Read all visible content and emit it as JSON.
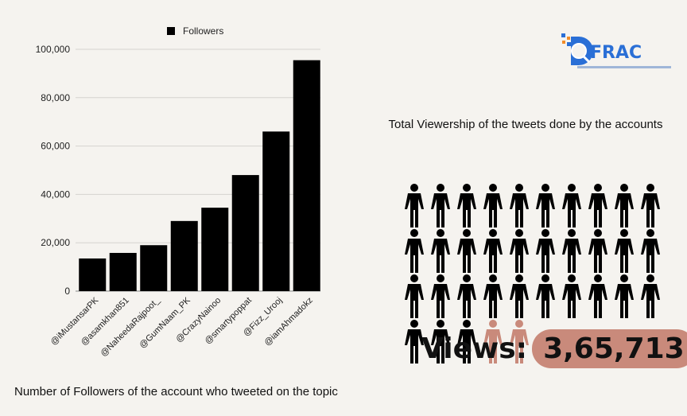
{
  "chart_data": {
    "type": "bar",
    "title": "",
    "legend": [
      "Followers"
    ],
    "legend_position": "top-center",
    "categories": [
      "@iMustansarPK",
      "@asamkhan851",
      "@NaheedaRajpoot_",
      "@GumNaam_PK",
      "@CrazyNainoo",
      "@smartypoppat",
      "@Fizz_Urooj",
      "@iamAhmadokz"
    ],
    "series": [
      {
        "name": "Followers",
        "values": [
          13500,
          15800,
          19000,
          29000,
          34500,
          48000,
          66000,
          95500
        ]
      }
    ],
    "ylim": [
      0,
      100000
    ],
    "yticks": [
      "0",
      "20,000",
      "40,000",
      "60,000",
      "80,000",
      "100,000"
    ],
    "grid": true,
    "bar_color": "#000000"
  },
  "pictogram": {
    "total_icons": 35,
    "highlighted_from_index": 33,
    "icon_color": "#000000",
    "highlight_color": "#c98a7b"
  },
  "captions": {
    "left": "Number of Followers of the account who tweeted on the topic",
    "right_title": "Total Viewership of the tweets done by the accounts",
    "views_label": "Views:",
    "views_value": "3,65,713"
  },
  "logo": {
    "text": "FRAC",
    "brand_color": "#2a6fd6",
    "icon": "magnifier-logo-icon"
  }
}
